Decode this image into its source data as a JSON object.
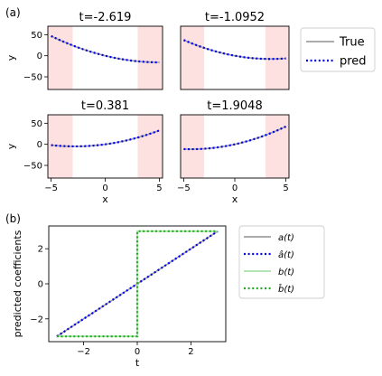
{
  "panel_labels": {
    "a": "(a)",
    "b": "(b)"
  },
  "chart_data": [
    {
      "type": "line",
      "panel": "(a)",
      "title": "t=-2.619",
      "xlabel": "",
      "ylabel": "y",
      "xlim": [
        -5.3,
        5.3
      ],
      "ylim": [
        -80,
        70
      ],
      "xticks": [],
      "yticks": [
        50,
        0,
        -50
      ],
      "shaded": [
        [
          -5.3,
          -3
        ],
        [
          3,
          5.3
        ]
      ],
      "curve": {
        "a": -2.619,
        "b": -3
      },
      "series": [
        {
          "name": "True",
          "color": "#a0a0a0",
          "style": "solid"
        },
        {
          "name": "pred",
          "color": "#0000ee",
          "style": "dotted"
        }
      ]
    },
    {
      "type": "line",
      "panel": "(a)",
      "title": "t=-1.0952",
      "xlabel": "",
      "ylabel": "",
      "xlim": [
        -5.3,
        5.3
      ],
      "ylim": [
        -80,
        70
      ],
      "xticks": [],
      "yticks": [],
      "shaded": [
        [
          -5.3,
          -3
        ],
        [
          3,
          5.3
        ]
      ],
      "curve": {
        "a": -1.0952,
        "b": -3
      },
      "series": [
        {
          "name": "True",
          "color": "#a0a0a0",
          "style": "solid"
        },
        {
          "name": "pred",
          "color": "#0000ee",
          "style": "dotted"
        }
      ]
    },
    {
      "type": "line",
      "panel": "(a)",
      "title": "t=0.381",
      "xlabel": "x",
      "ylabel": "y",
      "xlim": [
        -5.3,
        5.3
      ],
      "ylim": [
        -80,
        70
      ],
      "xticks": [
        -5,
        0,
        5
      ],
      "yticks": [
        50,
        0,
        -50
      ],
      "shaded": [
        [
          -5.3,
          -3
        ],
        [
          3,
          5.3
        ]
      ],
      "curve": {
        "a": 0.381,
        "b": 3
      },
      "series": [
        {
          "name": "True",
          "color": "#a0a0a0",
          "style": "solid"
        },
        {
          "name": "pred",
          "color": "#0000ee",
          "style": "dotted"
        }
      ]
    },
    {
      "type": "line",
      "panel": "(a)",
      "title": "t=1.9048",
      "xlabel": "x",
      "ylabel": "",
      "xlim": [
        -5.3,
        5.3
      ],
      "ylim": [
        -80,
        70
      ],
      "xticks": [
        -5,
        0,
        5
      ],
      "yticks": [],
      "shaded": [
        [
          -5.3,
          -3
        ],
        [
          3,
          5.3
        ]
      ],
      "curve": {
        "a": 1.9048,
        "b": 3
      },
      "series": [
        {
          "name": "True",
          "color": "#a0a0a0",
          "style": "solid"
        },
        {
          "name": "pred",
          "color": "#0000ee",
          "style": "dotted"
        }
      ]
    },
    {
      "type": "line",
      "panel": "(b)",
      "title": "",
      "xlabel": "t",
      "ylabel": "predicted coefficients",
      "xlim": [
        -3.3,
        3.3
      ],
      "ylim": [
        -3.3,
        3.3
      ],
      "xticks": [
        -2,
        0,
        2
      ],
      "yticks": [
        2,
        0,
        -2
      ],
      "series": [
        {
          "name": "a(t)",
          "latex_hat": false,
          "color": "#a0a0a0",
          "style": "solid",
          "x": [
            -3,
            3
          ],
          "y": [
            -3,
            3
          ]
        },
        {
          "name": "a(t)",
          "latex_hat": true,
          "color": "#0000ee",
          "style": "dotted",
          "x": [
            -3,
            3
          ],
          "y": [
            -3,
            3
          ]
        },
        {
          "name": "b(t)",
          "latex_hat": false,
          "color": "#a8e0a8",
          "style": "solid",
          "x": [
            -3,
            0,
            0,
            3
          ],
          "y": [
            -3,
            -3,
            3,
            3
          ]
        },
        {
          "name": "b(t)",
          "latex_hat": true,
          "color": "#22aa22",
          "style": "dotted",
          "x": [
            -3,
            0,
            0,
            3
          ],
          "y": [
            -3,
            -3,
            3,
            3
          ]
        }
      ]
    }
  ],
  "legend_top": [
    {
      "label": "True",
      "color": "#a0a0a0",
      "style": "solid"
    },
    {
      "label": "pred",
      "color": "#0000ee",
      "style": "dotted"
    }
  ],
  "legend_bottom": [
    {
      "label": "a(t)",
      "color": "#a0a0a0",
      "style": "solid"
    },
    {
      "label": "â(t)",
      "color": "#0000ee",
      "style": "dotted"
    },
    {
      "label": "b(t)",
      "color": "#a8e0a8",
      "style": "solid"
    },
    {
      "label": "b̂(t)",
      "color": "#22aa22",
      "style": "dotted"
    }
  ]
}
